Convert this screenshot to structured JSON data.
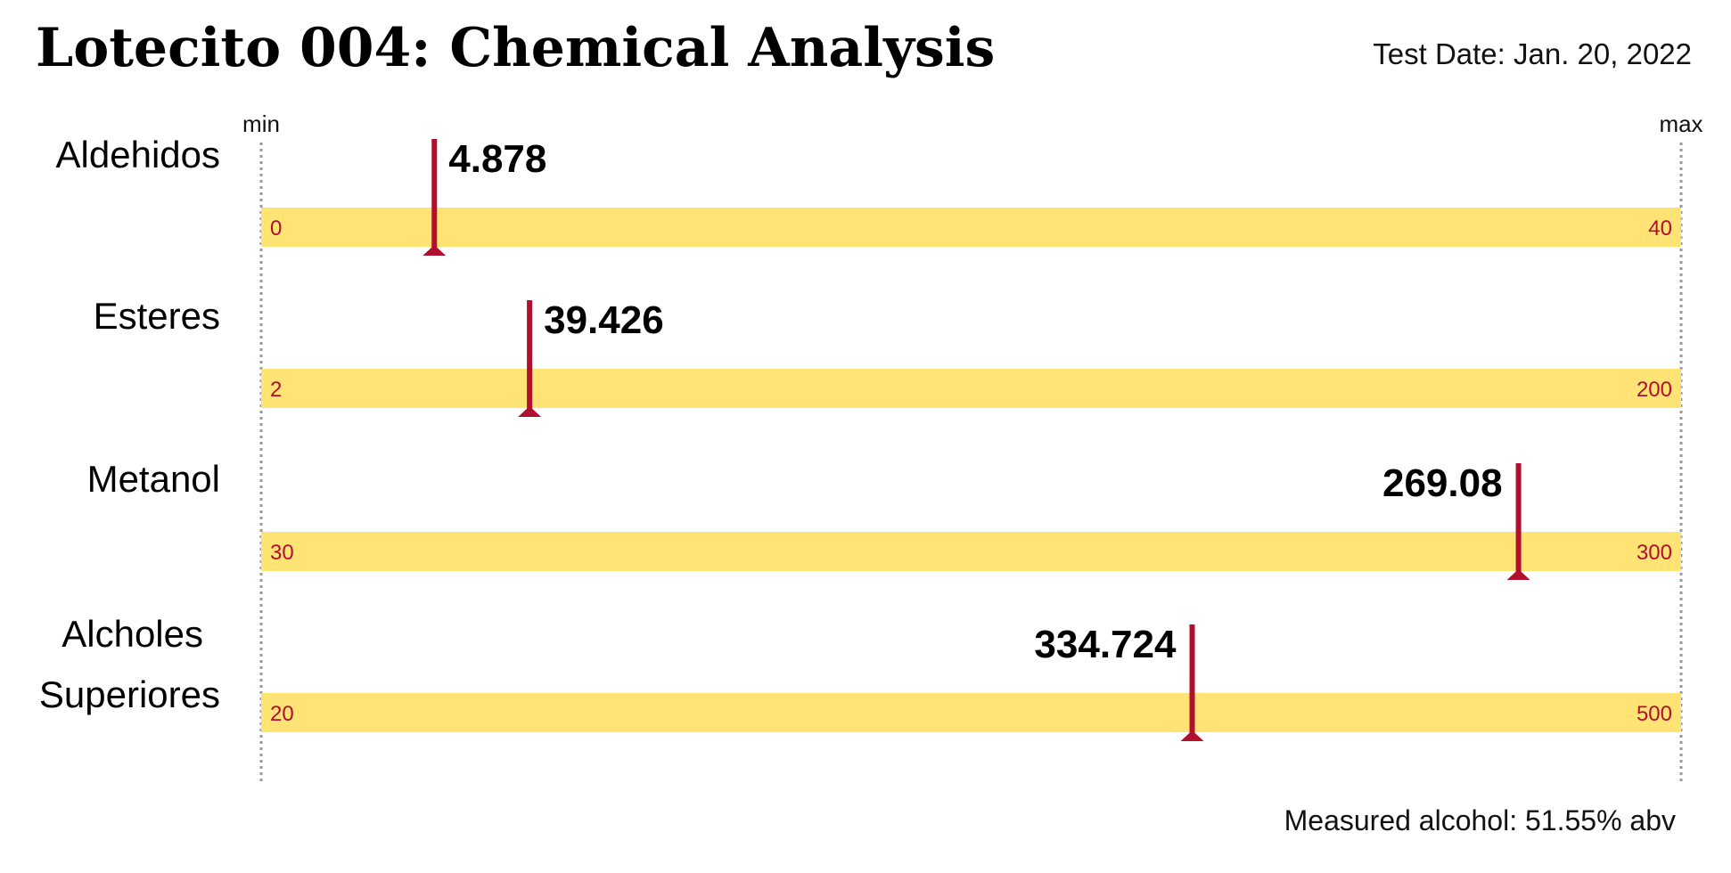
{
  "chart_data": {
    "type": "bullet-range",
    "title": "Lotecito 004: Chemical Analysis",
    "test_date": "Test Date: Jan. 20, 2022",
    "min_label": "min",
    "max_label": "max",
    "footer": "Measured alcohol: 51.55% abv",
    "items": [
      {
        "name_lines": [
          "Aldehidos"
        ],
        "min": 0,
        "max": 40,
        "min_label": "0",
        "max_label": "40",
        "value": 4.878,
        "value_label": "4.878"
      },
      {
        "name_lines": [
          "Esteres"
        ],
        "min": 2,
        "max": 200,
        "min_label": "2",
        "max_label": "200",
        "value": 39.426,
        "value_label": "39.426"
      },
      {
        "name_lines": [
          "Metanol"
        ],
        "min": 30,
        "max": 300,
        "min_label": "30",
        "max_label": "300",
        "value": 269.08,
        "value_label": "269.08"
      },
      {
        "name_lines": [
          "Alcholes",
          "Superiores"
        ],
        "min": 20,
        "max": 500,
        "min_label": "20",
        "max_label": "500",
        "value": 334.724,
        "value_label": "334.724"
      }
    ],
    "colors": {
      "band": "#FFE475",
      "marker": "#B0102E",
      "range_label": "#B0102E",
      "guide": "#999999",
      "text": "#000000"
    }
  }
}
